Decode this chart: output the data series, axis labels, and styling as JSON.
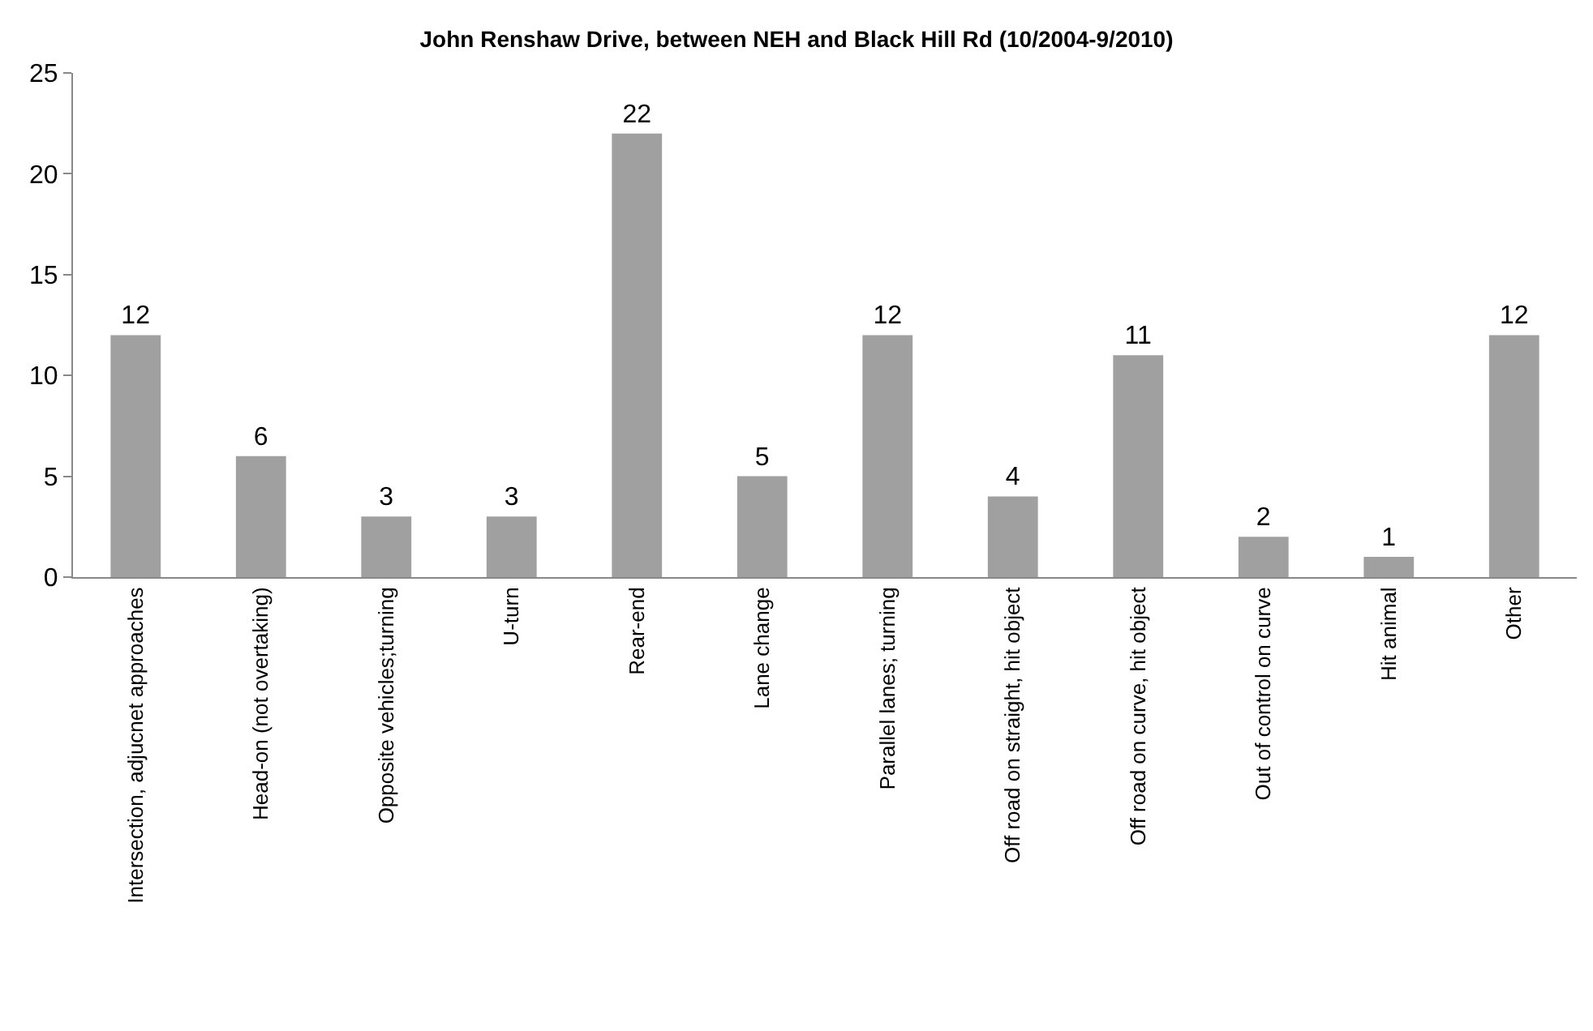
{
  "chart_data": {
    "type": "bar",
    "title": "John Renshaw Drive, between NEH and Black Hill Rd (10/2004-9/2010)",
    "categories": [
      "Intersection, adjucnet approaches",
      "Head-on (not overtaking)",
      "Opposite vehicles;turning",
      "U-turn",
      "Rear-end",
      "Lane change",
      "Parallel lanes; turning",
      "Off road on straight, hit object",
      "Off road on curve, hit object",
      "Out of control on curve",
      "Hit animal",
      "Other"
    ],
    "values": [
      12,
      6,
      3,
      3,
      22,
      5,
      12,
      4,
      11,
      2,
      1,
      12
    ],
    "color": "#a0a0a0",
    "ylim": [
      0,
      25
    ],
    "yticks": [
      0,
      5,
      10,
      15,
      20,
      25
    ],
    "grid": false,
    "data_labels": true
  }
}
